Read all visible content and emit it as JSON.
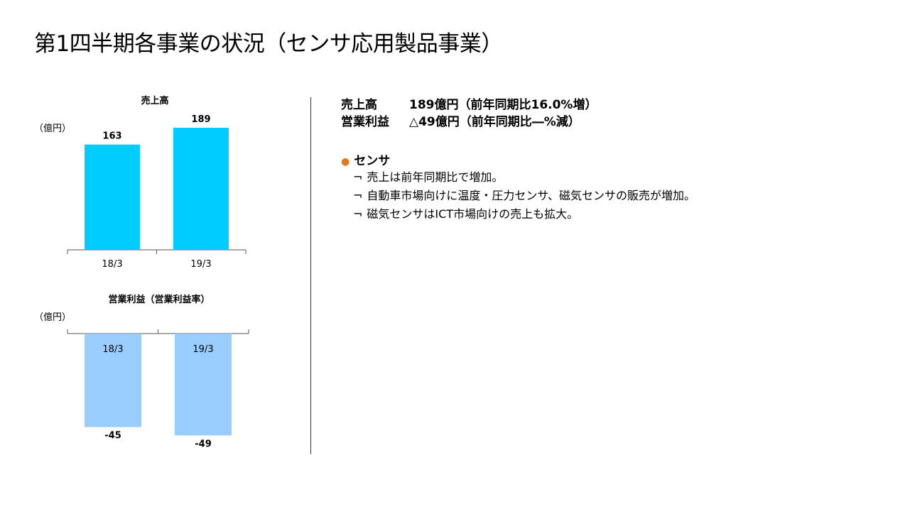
{
  "page_title": "第1四半期各事業の状況（センサ応用製品事業）",
  "chart_data": [
    {
      "type": "bar",
      "title": "売上高",
      "unit": "（億円）",
      "categories": [
        "18/3",
        "19/3"
      ],
      "values": [
        163,
        189
      ],
      "value_labels": [
        "163",
        "189"
      ],
      "ylim": [
        0,
        200
      ],
      "color": "#00CCFF"
    },
    {
      "type": "bar",
      "title": "営業利益（営業利益率）",
      "unit": "（億円）",
      "categories": [
        "18/3",
        "19/3"
      ],
      "values": [
        -45,
        -49
      ],
      "value_labels": [
        "-45",
        "-49"
      ],
      "ylim": [
        -55,
        0
      ],
      "color": "#99CCFF"
    }
  ],
  "summary": {
    "sales_label": "売上高",
    "sales_value": "189億円（前年同期比16.0%増）",
    "profit_label": "営業利益",
    "profit_value": "△49億円（前年同期比―%減）"
  },
  "bullet": {
    "marker": "●",
    "heading": "センサ",
    "sub_marker": "¬",
    "items": [
      "売上は前年同期比で増加。",
      "自動車市場向けに温度・圧力センサ、磁気センサの販売が増加。",
      "磁気センサはICT市場向けの売上も拡大。"
    ]
  }
}
